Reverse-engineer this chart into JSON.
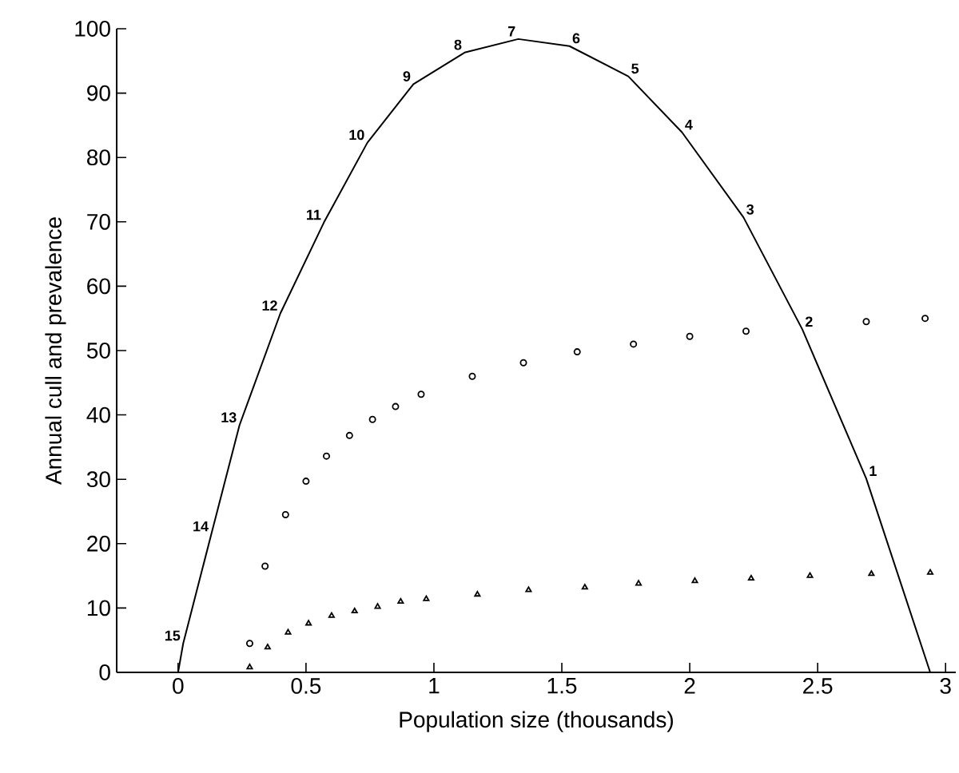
{
  "chart_data": {
    "type": "line",
    "xlabel": "Population size (thousands)",
    "ylabel": "Annual cull and prevalence",
    "xlim": [
      -0.24,
      3.04
    ],
    "ylim": [
      0,
      100
    ],
    "xticks": [
      0,
      0.5,
      1,
      1.5,
      2,
      2.5,
      3
    ],
    "yticks": [
      0,
      10,
      20,
      30,
      40,
      50,
      60,
      70,
      80,
      90,
      100
    ],
    "grid": false,
    "series": [
      {
        "color": "#000000",
        "x": [
          0,
          0.02,
          0.13,
          0.24,
          0.4,
          0.57,
          0.74,
          0.92,
          1.12,
          1.33,
          1.53,
          1.76,
          1.97,
          2.21,
          2.44,
          2.69,
          2.94
        ],
        "values": [
          0,
          4.5,
          21.5,
          38.4,
          55.8,
          69.9,
          82.3,
          91.4,
          96.3,
          98.4,
          97.3,
          92.6,
          83.9,
          70.7,
          53.3,
          30.1,
          0
        ]
      },
      {
        "type": "scatter",
        "color": "#000000",
        "marker": "circle",
        "x": [
          0.28,
          0.34,
          0.42,
          0.5,
          0.58,
          0.67,
          0.76,
          0.85,
          0.95,
          1.15,
          1.35,
          1.56,
          1.78,
          2.0,
          2.22,
          2.69,
          2.92
        ],
        "values": [
          4.5,
          16.5,
          24.5,
          29.7,
          33.6,
          36.8,
          39.3,
          41.3,
          43.2,
          46.0,
          48.1,
          49.8,
          51.0,
          52.2,
          53.0,
          54.5,
          55.0
        ]
      },
      {
        "type": "scatter",
        "color": "#000000",
        "marker": "triangle",
        "x": [
          0.28,
          0.35,
          0.43,
          0.51,
          0.6,
          0.69,
          0.78,
          0.87,
          0.97,
          1.17,
          1.37,
          1.59,
          1.8,
          2.02,
          2.24,
          2.47,
          2.71,
          2.94
        ],
        "values": [
          0.8,
          3.9,
          6.2,
          7.6,
          8.8,
          9.5,
          10.2,
          11.0,
          11.4,
          12.1,
          12.8,
          13.2,
          13.8,
          14.2,
          14.6,
          15.0,
          15.3,
          15.5
        ]
      }
    ],
    "annotations": [
      {
        "text": "15",
        "x": 0.02,
        "y": 4.5
      },
      {
        "text": "14",
        "x": 0.13,
        "y": 21.5
      },
      {
        "text": "13",
        "x": 0.24,
        "y": 38.4
      },
      {
        "text": "12",
        "x": 0.4,
        "y": 55.8
      },
      {
        "text": "11",
        "x": 0.57,
        "y": 69.9
      },
      {
        "text": "10",
        "x": 0.74,
        "y": 82.3
      },
      {
        "text": "9",
        "x": 0.92,
        "y": 91.4
      },
      {
        "text": "8",
        "x": 1.12,
        "y": 96.3
      },
      {
        "text": "7",
        "x": 1.33,
        "y": 98.4
      },
      {
        "text": "6",
        "x": 1.53,
        "y": 97.3
      },
      {
        "text": "5",
        "x": 1.76,
        "y": 92.6
      },
      {
        "text": "4",
        "x": 1.97,
        "y": 83.9
      },
      {
        "text": "3",
        "x": 2.21,
        "y": 70.7
      },
      {
        "text": "2",
        "x": 2.44,
        "y": 53.3
      },
      {
        "text": "1",
        "x": 2.69,
        "y": 30.1
      }
    ]
  }
}
